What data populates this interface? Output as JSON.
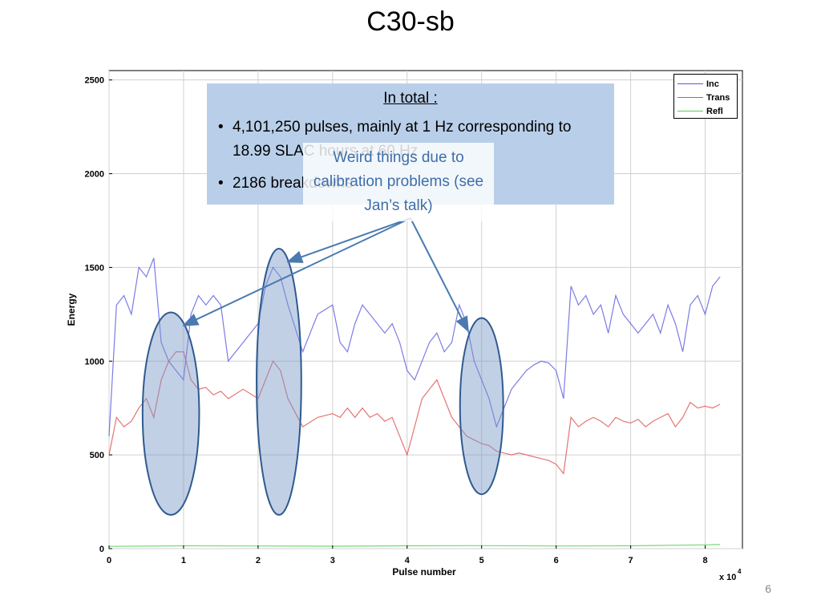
{
  "slide": {
    "title": "C30-sb",
    "page_number": "6"
  },
  "text_box": {
    "heading": "In total :",
    "bullets": [
      "4,101,250 pulses, mainly at 1 Hz corresponding to 18.99 SLAC hours at 60 Hz",
      "2186 breakdowns"
    ]
  },
  "callout": {
    "text": "Weird things due to calibration problems (see Jan’s talk)",
    "color": "#3e6ea8"
  },
  "chart_data": {
    "type": "line",
    "xlabel": "Pulse number",
    "ylabel": "Energy",
    "x_multiplier_label": "x 10",
    "x_multiplier_exponent": "4",
    "xlim": [
      0,
      85000
    ],
    "ylim": [
      0,
      2550
    ],
    "x_ticks": [
      0,
      10000,
      20000,
      30000,
      40000,
      50000,
      60000,
      70000,
      80000
    ],
    "x_tick_labels": [
      "0",
      "1",
      "2",
      "3",
      "4",
      "5",
      "6",
      "7",
      "8"
    ],
    "y_ticks": [
      0,
      500,
      1000,
      1500,
      2000,
      2500
    ],
    "y_tick_labels": [
      "0",
      "500",
      "1000",
      "1500",
      "2000",
      "2500"
    ],
    "grid": true,
    "legend_position": "top-right",
    "series": [
      {
        "name": "Inc",
        "color": "#5a5ae0",
        "x": [
          0,
          1000,
          2000,
          3000,
          4000,
          5000,
          6000,
          7000,
          8000,
          9000,
          10000,
          11000,
          12000,
          13000,
          14000,
          15000,
          16000,
          18000,
          20000,
          21000,
          22000,
          23000,
          24000,
          26000,
          28000,
          30000,
          31000,
          32000,
          33000,
          34000,
          35000,
          36000,
          37000,
          38000,
          39000,
          40000,
          41000,
          42000,
          43000,
          44000,
          45000,
          46000,
          47000,
          48000,
          49000,
          50000,
          51000,
          52000,
          53000,
          54000,
          55000,
          56000,
          57000,
          58000,
          59000,
          60000,
          61000,
          62000,
          63000,
          64000,
          65000,
          66000,
          67000,
          68000,
          69000,
          70000,
          71000,
          72000,
          73000,
          74000,
          75000,
          76000,
          77000,
          78000,
          79000,
          80000,
          81000,
          82000
        ],
        "y": [
          600,
          1300,
          1350,
          1250,
          1500,
          1450,
          1550,
          1100,
          1000,
          950,
          900,
          1250,
          1350,
          1300,
          1350,
          1300,
          1000,
          1100,
          1200,
          1400,
          1500,
          1450,
          1300,
          1050,
          1250,
          1300,
          1100,
          1050,
          1200,
          1300,
          1250,
          1200,
          1150,
          1200,
          1100,
          950,
          900,
          1000,
          1100,
          1150,
          1050,
          1100,
          1300,
          1200,
          1000,
          900,
          800,
          650,
          750,
          850,
          900,
          950,
          980,
          1000,
          990,
          950,
          800,
          1400,
          1300,
          1350,
          1250,
          1300,
          1150,
          1350,
          1250,
          1200,
          1150,
          1200,
          1250,
          1150,
          1300,
          1200,
          1050,
          1300,
          1350,
          1250,
          1400,
          1450
        ]
      },
      {
        "name": "Trans",
        "color": "#e05050",
        "x": [
          0,
          1000,
          2000,
          3000,
          4000,
          5000,
          6000,
          7000,
          8000,
          9000,
          10000,
          11000,
          12000,
          13000,
          14000,
          15000,
          16000,
          18000,
          20000,
          21000,
          22000,
          23000,
          24000,
          26000,
          28000,
          30000,
          31000,
          32000,
          33000,
          34000,
          35000,
          36000,
          37000,
          38000,
          39000,
          40000,
          41000,
          42000,
          43000,
          44000,
          45000,
          46000,
          47000,
          48000,
          49000,
          50000,
          51000,
          52000,
          53000,
          54000,
          55000,
          56000,
          57000,
          58000,
          59000,
          60000,
          61000,
          62000,
          63000,
          64000,
          65000,
          66000,
          67000,
          68000,
          69000,
          70000,
          71000,
          72000,
          73000,
          74000,
          75000,
          76000,
          77000,
          78000,
          79000,
          80000,
          81000,
          82000
        ],
        "y": [
          500,
          700,
          650,
          680,
          750,
          800,
          700,
          900,
          1000,
          1050,
          1050,
          900,
          850,
          860,
          820,
          840,
          800,
          850,
          800,
          900,
          1000,
          950,
          800,
          650,
          700,
          720,
          700,
          750,
          700,
          750,
          700,
          720,
          680,
          700,
          600,
          500,
          650,
          800,
          850,
          900,
          800,
          700,
          650,
          600,
          580,
          560,
          550,
          520,
          510,
          500,
          510,
          500,
          490,
          480,
          470,
          450,
          400,
          700,
          650,
          680,
          700,
          680,
          650,
          700,
          680,
          670,
          690,
          650,
          680,
          700,
          720,
          650,
          700,
          780,
          750,
          760,
          750,
          770
        ]
      },
      {
        "name": "Refl",
        "color": "#50d050",
        "x": [
          0,
          10000,
          20000,
          30000,
          40000,
          50000,
          60000,
          70000,
          80000,
          82000
        ],
        "y": [
          12,
          15,
          14,
          13,
          15,
          16,
          14,
          15,
          20,
          22
        ]
      }
    ],
    "annotations": [
      {
        "type": "ellipse",
        "cx": 8300,
        "cy": 720,
        "rx": 3800,
        "ry": 540
      },
      {
        "type": "ellipse",
        "cx": 22800,
        "cy": 890,
        "rx": 3000,
        "ry": 710
      },
      {
        "type": "ellipse",
        "cx": 50000,
        "cy": 760,
        "rx": 2900,
        "ry": 470
      }
    ],
    "arrows": [
      {
        "to_x": 10000,
        "to_y": 1190
      },
      {
        "to_x": 24000,
        "to_y": 1530
      },
      {
        "to_x": 48200,
        "to_y": 1160
      }
    ]
  }
}
